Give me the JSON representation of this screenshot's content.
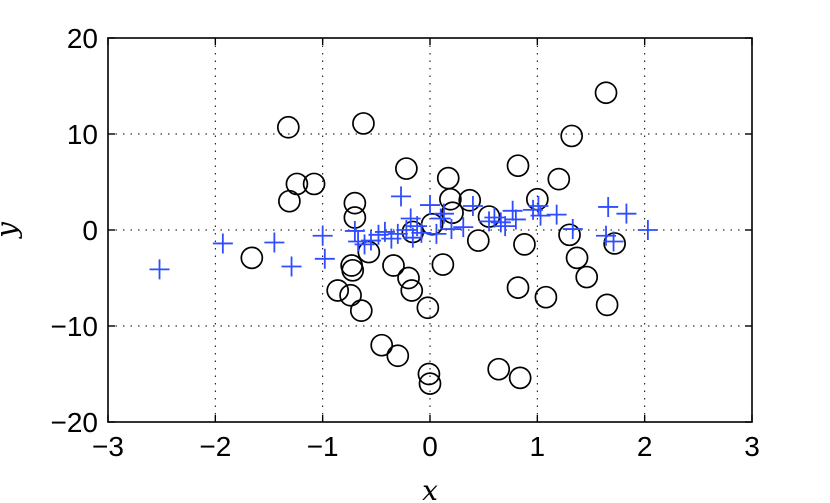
{
  "chart_data": {
    "type": "scatter",
    "title": "",
    "xlabel": "x",
    "ylabel": "y",
    "xlim": [
      -3,
      3
    ],
    "ylim": [
      -20,
      20
    ],
    "xticks": [
      "−3",
      "−2",
      "−1",
      "0",
      "1",
      "2",
      "3"
    ],
    "yticks": [
      "−20",
      "−10",
      "0",
      "10",
      "20"
    ],
    "grid": true,
    "grid_style": "dotted",
    "legend": "none",
    "colors": {
      "circle": "#000000",
      "plus": "#2f4cff"
    },
    "series": [
      {
        "marker": "circle",
        "points": [
          [
            -1.66,
            -2.9
          ],
          [
            -1.32,
            10.7
          ],
          [
            -1.31,
            3.0
          ],
          [
            -1.24,
            4.8
          ],
          [
            -1.08,
            4.8
          ],
          [
            -0.86,
            -6.3
          ],
          [
            -0.74,
            -6.8
          ],
          [
            -0.73,
            -3.7
          ],
          [
            -0.72,
            -4.2
          ],
          [
            -0.7,
            2.8
          ],
          [
            -0.7,
            1.3
          ],
          [
            -0.64,
            -8.4
          ],
          [
            -0.62,
            11.1
          ],
          [
            -0.57,
            -2.3
          ],
          [
            -0.45,
            -12.0
          ],
          [
            -0.34,
            -3.7
          ],
          [
            -0.3,
            -13.1
          ],
          [
            -0.22,
            6.4
          ],
          [
            -0.2,
            -5.0
          ],
          [
            -0.17,
            -6.3
          ],
          [
            -0.16,
            -0.2
          ],
          [
            -0.02,
            -8.1
          ],
          [
            -0.01,
            -15.0
          ],
          [
            0.0,
            -16.0
          ],
          [
            0.02,
            0.6
          ],
          [
            0.12,
            -3.6
          ],
          [
            0.17,
            5.4
          ],
          [
            0.19,
            3.2
          ],
          [
            0.21,
            1.8
          ],
          [
            0.37,
            3.1
          ],
          [
            0.45,
            -1.1
          ],
          [
            0.55,
            1.4
          ],
          [
            0.64,
            -14.5
          ],
          [
            0.82,
            -6.0
          ],
          [
            0.82,
            6.7
          ],
          [
            0.84,
            -15.4
          ],
          [
            0.88,
            -1.5
          ],
          [
            1.0,
            3.2
          ],
          [
            1.08,
            -7.0
          ],
          [
            1.2,
            5.3
          ],
          [
            1.3,
            -0.5
          ],
          [
            1.32,
            9.8
          ],
          [
            1.37,
            -2.9
          ],
          [
            1.46,
            -4.9
          ],
          [
            1.64,
            14.3
          ],
          [
            1.65,
            -7.8
          ],
          [
            1.72,
            -1.4
          ]
        ]
      },
      {
        "marker": "plus",
        "points": [
          [
            -2.52,
            -4.1
          ],
          [
            -1.93,
            -1.4
          ],
          [
            -1.45,
            -1.3
          ],
          [
            -1.29,
            -3.8
          ],
          [
            -1.0,
            -0.6
          ],
          [
            -0.98,
            -3.0
          ],
          [
            -0.7,
            -0.1
          ],
          [
            -0.67,
            -1.2
          ],
          [
            -0.61,
            -1.5
          ],
          [
            -0.55,
            -1.1
          ],
          [
            -0.48,
            -0.5
          ],
          [
            -0.42,
            -0.2
          ],
          [
            -0.36,
            -0.9
          ],
          [
            -0.3,
            -0.4
          ],
          [
            -0.27,
            3.5
          ],
          [
            -0.22,
            0.0
          ],
          [
            -0.18,
            1.2
          ],
          [
            -0.16,
            -0.8
          ],
          [
            -0.12,
            0.4
          ],
          [
            -0.08,
            -0.3
          ],
          [
            0.0,
            2.6
          ],
          [
            0.06,
            -0.4
          ],
          [
            0.1,
            1.2
          ],
          [
            0.13,
            1.7
          ],
          [
            0.2,
            0.1
          ],
          [
            0.31,
            0.3
          ],
          [
            0.4,
            2.5
          ],
          [
            0.55,
            0.9
          ],
          [
            0.6,
            1.3
          ],
          [
            0.66,
            0.8
          ],
          [
            0.7,
            0.4
          ],
          [
            0.77,
            2.0
          ],
          [
            0.8,
            1.1
          ],
          [
            0.96,
            2.1
          ],
          [
            1.01,
            2.5
          ],
          [
            1.03,
            1.5
          ],
          [
            1.18,
            1.6
          ],
          [
            1.33,
            0.1
          ],
          [
            1.64,
            -0.6
          ],
          [
            1.66,
            2.4
          ],
          [
            1.71,
            -1.2
          ],
          [
            1.83,
            1.7
          ],
          [
            2.03,
            0.0
          ]
        ]
      }
    ]
  }
}
